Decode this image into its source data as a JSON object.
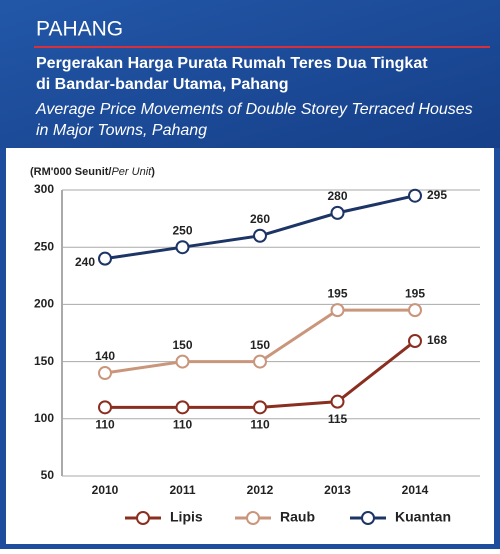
{
  "header": "PAHANG",
  "chart_data": {
    "type": "line",
    "title": [
      "Pergerakan Harga Purata Rumah Teres Dua Tingkat",
      "di Bandar-bandar Utama, Pahang"
    ],
    "subtitle": [
      "Average Price Movements of Double Storey Terraced Houses",
      "in Major Towns, Pahang"
    ],
    "y_label": {
      "main": "(RM'000 Seunit/",
      "italic": "Per Unit",
      "end": ")"
    },
    "categories": [
      "2010",
      "2011",
      "2012",
      "2013",
      "2014"
    ],
    "series": [
      {
        "name": "Lipis",
        "color": "#8a2f20",
        "values": [
          110,
          110,
          110,
          115,
          168
        ]
      },
      {
        "name": "Raub",
        "color": "#c9967c",
        "values": [
          140,
          150,
          150,
          195,
          195
        ]
      },
      {
        "name": "Kuantan",
        "color": "#1d3566",
        "values": [
          240,
          250,
          260,
          280,
          295
        ]
      }
    ],
    "ylim": [
      50,
      300
    ],
    "yticks": [
      50,
      100,
      150,
      200,
      250,
      300
    ],
    "grid": true,
    "legend": "bottom"
  }
}
